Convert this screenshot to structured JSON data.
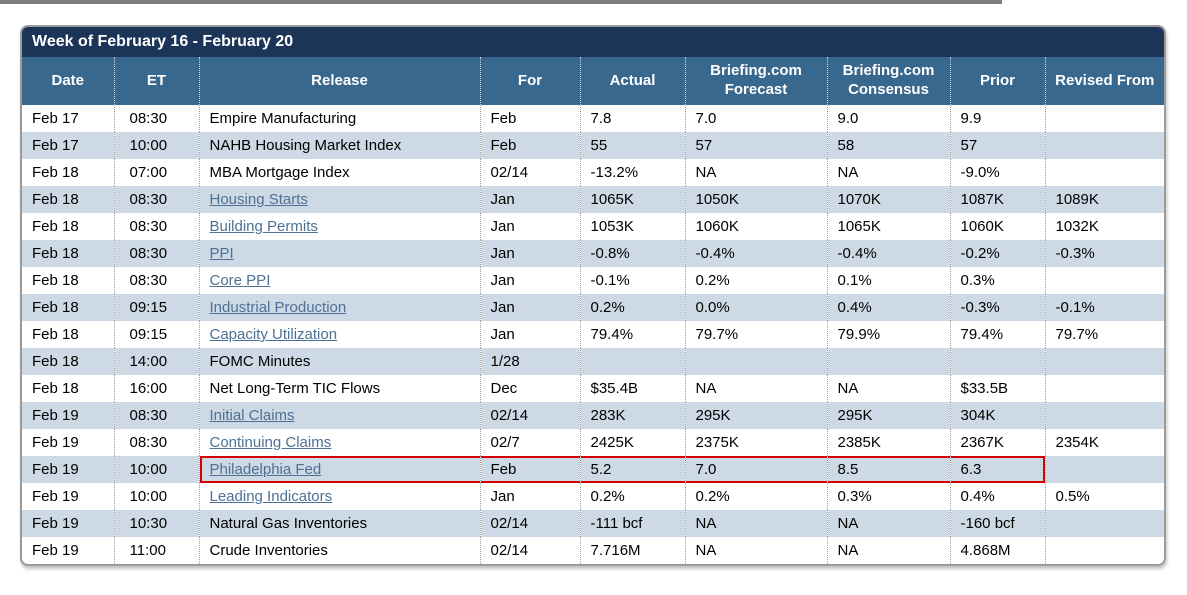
{
  "calendar": {
    "title": "Week of February 16 - February 20",
    "columns": [
      "Date",
      "ET",
      "Release",
      "For",
      "Actual",
      "Briefing.com Forecast",
      "Briefing.com Consensus",
      "Prior",
      "Revised From"
    ],
    "rows": [
      {
        "date": "Feb 17",
        "et": "08:30",
        "release": "Empire Manufacturing",
        "link": false,
        "highlighted": false,
        "for": "Feb",
        "actual": "7.8",
        "forecast": "7.0",
        "consensus": "9.0",
        "prior": "9.9",
        "revised": ""
      },
      {
        "date": "Feb 17",
        "et": "10:00",
        "release": "NAHB Housing Market Index",
        "link": false,
        "highlighted": false,
        "for": "Feb",
        "actual": "55",
        "forecast": "57",
        "consensus": "58",
        "prior": "57",
        "revised": ""
      },
      {
        "date": "Feb 18",
        "et": "07:00",
        "release": "MBA Mortgage Index",
        "link": false,
        "highlighted": false,
        "for": "02/14",
        "actual": "-13.2%",
        "forecast": "NA",
        "consensus": "NA",
        "prior": "-9.0%",
        "revised": ""
      },
      {
        "date": "Feb 18",
        "et": "08:30",
        "release": "Housing Starts",
        "link": true,
        "highlighted": false,
        "for": "Jan",
        "actual": "1065K",
        "forecast": "1050K",
        "consensus": "1070K",
        "prior": "1087K",
        "revised": "1089K"
      },
      {
        "date": "Feb 18",
        "et": "08:30",
        "release": "Building Permits",
        "link": true,
        "highlighted": false,
        "for": "Jan",
        "actual": "1053K",
        "forecast": "1060K",
        "consensus": "1065K",
        "prior": "1060K",
        "revised": "1032K"
      },
      {
        "date": "Feb 18",
        "et": "08:30",
        "release": "PPI",
        "link": true,
        "highlighted": false,
        "for": "Jan",
        "actual": "-0.8%",
        "forecast": "-0.4%",
        "consensus": "-0.4%",
        "prior": "-0.2%",
        "revised": "-0.3%"
      },
      {
        "date": "Feb 18",
        "et": "08:30",
        "release": "Core PPI",
        "link": true,
        "highlighted": false,
        "for": "Jan",
        "actual": "-0.1%",
        "forecast": "0.2%",
        "consensus": "0.1%",
        "prior": "0.3%",
        "revised": ""
      },
      {
        "date": "Feb 18",
        "et": "09:15",
        "release": "Industrial Production",
        "link": true,
        "highlighted": false,
        "for": "Jan",
        "actual": "0.2%",
        "forecast": "0.0%",
        "consensus": "0.4%",
        "prior": "-0.3%",
        "revised": "-0.1%"
      },
      {
        "date": "Feb 18",
        "et": "09:15",
        "release": "Capacity Utilization",
        "link": true,
        "highlighted": false,
        "for": "Jan",
        "actual": "79.4%",
        "forecast": "79.7%",
        "consensus": "79.9%",
        "prior": "79.4%",
        "revised": "79.7%"
      },
      {
        "date": "Feb 18",
        "et": "14:00",
        "release": "FOMC Minutes",
        "link": false,
        "highlighted": false,
        "for": "1/28",
        "actual": "",
        "forecast": "",
        "consensus": "",
        "prior": "",
        "revised": ""
      },
      {
        "date": "Feb 18",
        "et": "16:00",
        "release": "Net Long-Term TIC Flows",
        "link": false,
        "highlighted": false,
        "for": "Dec",
        "actual": "$35.4B",
        "forecast": "NA",
        "consensus": "NA",
        "prior": "$33.5B",
        "revised": ""
      },
      {
        "date": "Feb 19",
        "et": "08:30",
        "release": "Initial Claims",
        "link": true,
        "highlighted": false,
        "for": "02/14",
        "actual": "283K",
        "forecast": "295K",
        "consensus": "295K",
        "prior": "304K",
        "revised": ""
      },
      {
        "date": "Feb 19",
        "et": "08:30",
        "release": "Continuing Claims",
        "link": true,
        "highlighted": false,
        "for": "02/7",
        "actual": "2425K",
        "forecast": "2375K",
        "consensus": "2385K",
        "prior": "2367K",
        "revised": "2354K"
      },
      {
        "date": "Feb 19",
        "et": "10:00",
        "release": "Philadelphia Fed",
        "link": true,
        "highlighted": true,
        "for": "Feb",
        "actual": "5.2",
        "forecast": "7.0",
        "consensus": "8.5",
        "prior": "6.3",
        "revised": ""
      },
      {
        "date": "Feb 19",
        "et": "10:00",
        "release": "Leading Indicators",
        "link": true,
        "highlighted": false,
        "for": "Jan",
        "actual": "0.2%",
        "forecast": "0.2%",
        "consensus": "0.3%",
        "prior": "0.4%",
        "revised": "0.5%"
      },
      {
        "date": "Feb 19",
        "et": "10:30",
        "release": "Natural Gas Inventories",
        "link": false,
        "highlighted": false,
        "for": "02/14",
        "actual": "-111 bcf",
        "forecast": "NA",
        "consensus": "NA",
        "prior": "-160 bcf",
        "revised": ""
      },
      {
        "date": "Feb 19",
        "et": "11:00",
        "release": "Crude Inventories",
        "link": false,
        "highlighted": false,
        "for": "02/14",
        "actual": "7.716M",
        "forecast": "NA",
        "consensus": "NA",
        "prior": "4.868M",
        "revised": ""
      }
    ],
    "colors": {
      "title_bg": "#1b3458",
      "header_bg": "#39688f",
      "stripe_bg": "#cdd9e4",
      "link": "#4d7195",
      "highlight_border": "#d40000"
    }
  }
}
